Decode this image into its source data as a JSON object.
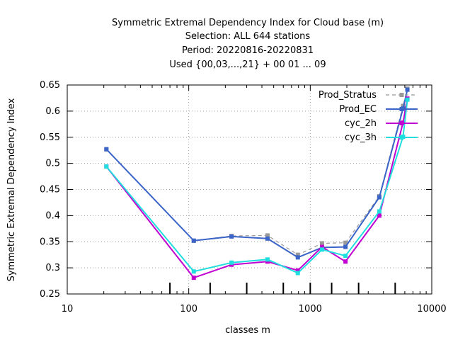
{
  "chart_data": {
    "type": "line",
    "title_lines": [
      "Symmetric Extremal Dependency Index  for Cloud base (m)",
      "Selection: ALL    644 stations",
      "Period: 20220816-20220831",
      "Used {00,03,...,21} + 00 01 ... 09"
    ],
    "xlabel": "classes m",
    "ylabel": "Symmetric Extremal Dependency Index",
    "x_scale": "log",
    "xlim": [
      10,
      10000
    ],
    "ylim": [
      0.25,
      0.65
    ],
    "x_ticks": [
      10,
      100,
      1000,
      10000
    ],
    "x_tick_labels": [
      "10",
      "100",
      "1000",
      "10000"
    ],
    "y_ticks": [
      0.25,
      0.3,
      0.35,
      0.4,
      0.45,
      0.5,
      0.55,
      0.6,
      0.65
    ],
    "y_tick_labels": [
      "0.25",
      "0.3",
      "0.35",
      "0.4",
      "0.45",
      "0.5",
      "0.55",
      "0.6",
      "0.65"
    ],
    "grid": true,
    "legend_position": "top-right",
    "class_boundary_marks": [
      70,
      150,
      300,
      600,
      1000,
      1500,
      2500,
      5000
    ],
    "x": [
      21,
      110,
      225,
      445,
      790,
      1250,
      1950,
      3700,
      5800,
      6300
    ],
    "series": [
      {
        "name": "Prod_Stratus",
        "color": "#999999",
        "dashed": true,
        "values": [
          0.527,
          0.352,
          0.361,
          0.362,
          0.325,
          0.347,
          0.348,
          0.437,
          0.61,
          0.643
        ]
      },
      {
        "name": "Prod_EC",
        "color": "#3a64c8",
        "dashed": false,
        "values": [
          0.527,
          0.352,
          0.36,
          0.356,
          0.32,
          0.339,
          0.34,
          0.435,
          0.605,
          0.641
        ]
      },
      {
        "name": "cyc_2h",
        "color": "#c000d0",
        "dashed": false,
        "values": [
          0.494,
          0.281,
          0.306,
          0.312,
          0.295,
          0.34,
          0.312,
          0.4,
          0.578,
          0.624
        ]
      },
      {
        "name": "cyc_3h",
        "color": "#20dede",
        "dashed": false,
        "values": [
          0.494,
          0.293,
          0.31,
          0.316,
          0.29,
          0.335,
          0.323,
          0.408,
          0.551,
          0.622
        ]
      }
    ]
  }
}
